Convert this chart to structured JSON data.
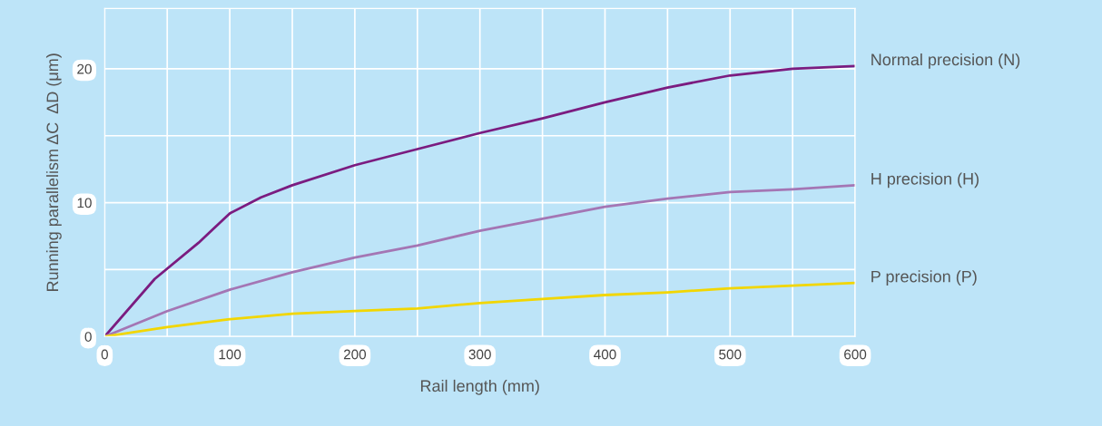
{
  "chart_data": {
    "type": "line",
    "xlabel": "Rail length (mm)",
    "ylabel": "Running parallelism ΔC  ΔD (μm)",
    "xlim": [
      0,
      600
    ],
    "ylim": [
      0,
      24.5
    ],
    "xticks": [
      0,
      {
        "value": 50,
        "label": null
      },
      100,
      {
        "value": 150,
        "label": null
      },
      200,
      {
        "value": 250,
        "label": null
      },
      300,
      {
        "value": 350,
        "label": null
      },
      400,
      {
        "value": 450,
        "label": null
      },
      500,
      {
        "value": 550,
        "label": null
      },
      600
    ],
    "yticks": [
      0,
      {
        "value": 5,
        "label": null
      },
      10,
      {
        "value": 15,
        "label": null
      },
      20
    ],
    "grid": true,
    "legend": false,
    "marker": "none",
    "line_style": "solid",
    "series": [
      {
        "name": "Normal precision (N)",
        "color": "#7b1c80",
        "x": [
          0,
          40,
          75,
          100,
          125,
          150,
          200,
          250,
          300,
          350,
          400,
          450,
          500,
          550,
          600
        ],
        "values": [
          0,
          4.3,
          7,
          9.2,
          10.4,
          11.3,
          12.8,
          14.0,
          15.2,
          16.3,
          17.5,
          18.6,
          19.5,
          20.0,
          20.2
        ]
      },
      {
        "name": "H precision (H)",
        "color": "#a476b4",
        "x": [
          0,
          50,
          100,
          150,
          200,
          250,
          300,
          350,
          400,
          450,
          500,
          550,
          600
        ],
        "values": [
          0,
          1.9,
          3.5,
          4.8,
          5.9,
          6.8,
          7.9,
          8.8,
          9.7,
          10.3,
          10.8,
          11.0,
          11.3
        ]
      },
      {
        "name": "P precision (P)",
        "color": "#f2d600",
        "x": [
          0,
          50,
          100,
          150,
          200,
          250,
          300,
          350,
          400,
          450,
          500,
          550,
          600
        ],
        "values": [
          0,
          0.7,
          1.3,
          1.7,
          1.9,
          2.1,
          2.5,
          2.8,
          3.1,
          3.3,
          3.6,
          3.8,
          4.0
        ]
      }
    ]
  }
}
